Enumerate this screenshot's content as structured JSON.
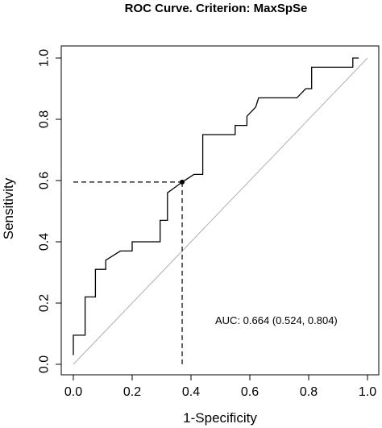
{
  "chart_data": {
    "type": "line",
    "title": "ROC Curve. Criterion: MaxSpSe",
    "xlabel": "1-Specificity",
    "ylabel": "Sensitivity",
    "xlim": [
      0,
      1
    ],
    "ylim": [
      0,
      1
    ],
    "xticks": [
      "0.0",
      "0.2",
      "0.4",
      "0.6",
      "0.8",
      "1.0"
    ],
    "yticks": [
      "0.0",
      "0.2",
      "0.4",
      "0.6",
      "0.8",
      "1.0"
    ],
    "annotation": "AUC: 0.664 (0.524, 0.804)",
    "colors": {
      "curve": "#000000",
      "diagonal": "#b0b0b0",
      "cutoff": "#000000"
    },
    "cutoff_point": {
      "x": 0.37,
      "y": 0.595
    },
    "series": [
      {
        "values": [
          [
            0.0,
            0.03
          ],
          [
            0.0,
            0.095
          ],
          [
            0.04,
            0.095
          ],
          [
            0.04,
            0.22
          ],
          [
            0.075,
            0.22
          ],
          [
            0.075,
            0.31
          ],
          [
            0.11,
            0.31
          ],
          [
            0.11,
            0.34
          ],
          [
            0.16,
            0.37
          ],
          [
            0.2,
            0.37
          ],
          [
            0.2,
            0.4
          ],
          [
            0.21,
            0.4
          ],
          [
            0.295,
            0.4
          ],
          [
            0.295,
            0.47
          ],
          [
            0.32,
            0.47
          ],
          [
            0.32,
            0.56
          ],
          [
            0.37,
            0.595
          ],
          [
            0.41,
            0.62
          ],
          [
            0.44,
            0.62
          ],
          [
            0.44,
            0.75
          ],
          [
            0.55,
            0.75
          ],
          [
            0.55,
            0.78
          ],
          [
            0.59,
            0.78
          ],
          [
            0.59,
            0.81
          ],
          [
            0.62,
            0.84
          ],
          [
            0.63,
            0.87
          ],
          [
            0.76,
            0.87
          ],
          [
            0.79,
            0.9
          ],
          [
            0.81,
            0.9
          ],
          [
            0.81,
            0.97
          ],
          [
            0.95,
            0.97
          ],
          [
            0.95,
            1.0
          ],
          [
            0.97,
            1.0
          ]
        ]
      }
    ]
  }
}
